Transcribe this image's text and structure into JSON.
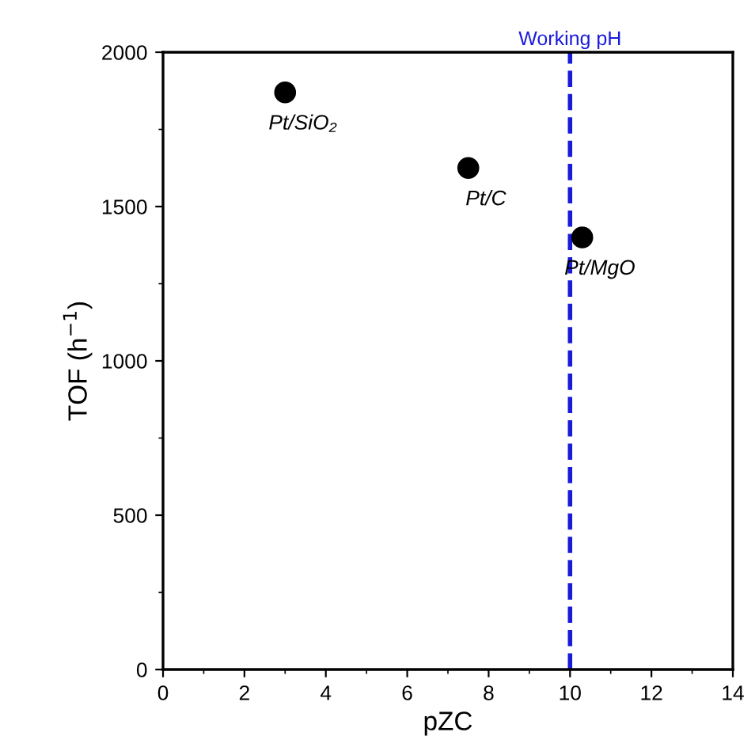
{
  "chart_data": {
    "type": "scatter",
    "xlabel": "pZC",
    "ylabel": "TOF (h$^{−1}$)",
    "x": [
      3,
      7.5,
      10.3
    ],
    "series": [
      {
        "color": "#000000",
        "values": [
          1870,
          1625,
          1400
        ]
      }
    ],
    "marker": "circle",
    "xlim": [
      0,
      14
    ],
    "xticks": [
      0,
      2,
      4,
      6,
      8,
      10,
      12,
      14
    ],
    "ylim": [
      0,
      2000
    ],
    "yticks": [
      0,
      500,
      1000,
      1500,
      2000
    ],
    "grid": false,
    "ref_lines": [
      {
        "axis": "x",
        "value": 10,
        "label": "Working pH",
        "color": "#1a1adb",
        "line_style": "dashed"
      }
    ],
    "annotations": [
      {
        "text": "Pt/SiO₂",
        "x": 3,
        "y": 1870
      },
      {
        "text": "Pt/C",
        "x": 7.5,
        "y": 1625
      },
      {
        "text": "Pt/MgO",
        "x": 10.3,
        "y": 1400
      }
    ]
  }
}
